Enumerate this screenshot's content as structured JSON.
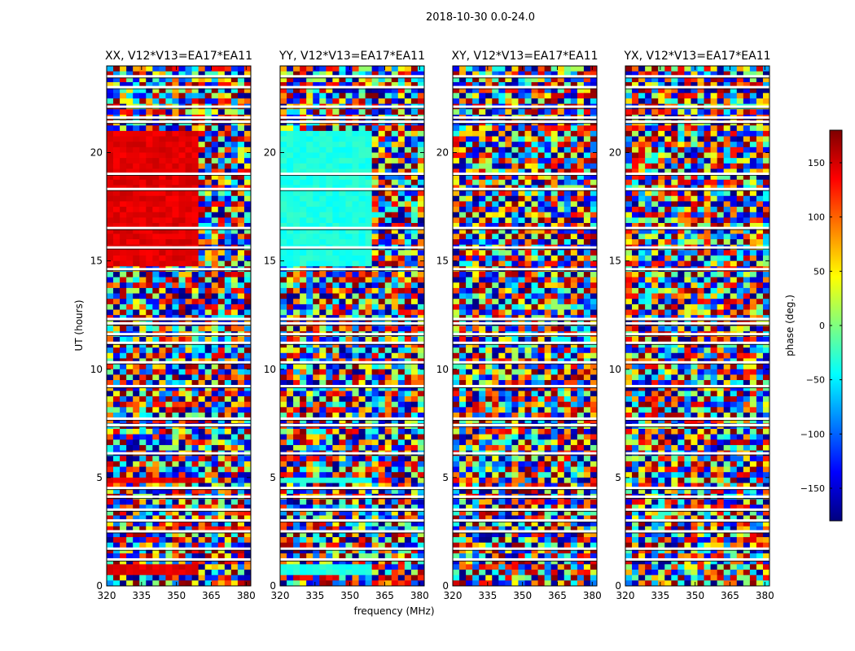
{
  "figure": {
    "suptitle": "2018-10-30 0.0-24.0"
  },
  "chart_data": [
    {
      "type": "heatmap",
      "title": "XX, V12*V13=EA17*EA11",
      "xlabel": "",
      "ylabel": "UT (hours)",
      "xlim": [
        320,
        382
      ],
      "ylim": [
        0,
        24
      ],
      "xticks": [
        320,
        335,
        350,
        365,
        380
      ],
      "yticks": [
        0,
        5,
        10,
        15,
        20
      ],
      "value_range": [
        -180,
        180
      ],
      "dominant_phase_deg": 145,
      "flagged_rows_hours": [
        1.2,
        1.7,
        2.5,
        3.0,
        3.5,
        4.1,
        4.5,
        6.1,
        7.4,
        7.7,
        9.2,
        10.3,
        11.2,
        11.6,
        12.1,
        12.3,
        14.6,
        15.6,
        16.5,
        18.3,
        19.0,
        21.4,
        21.6,
        22.1,
        23.0,
        23.5
      ]
    },
    {
      "type": "heatmap",
      "title": "YY, V12*V13=EA17*EA11",
      "xlabel": "frequency (MHz)",
      "ylabel": "",
      "xlim": [
        320,
        382
      ],
      "ylim": [
        0,
        24
      ],
      "xticks": [
        320,
        335,
        350,
        365,
        380
      ],
      "yticks": [
        0,
        5,
        10,
        15,
        20
      ],
      "value_range": [
        -180,
        180
      ],
      "dominant_phase_deg": -35,
      "flagged_rows_hours": [
        1.2,
        1.7,
        2.5,
        3.0,
        3.5,
        4.1,
        4.5,
        6.1,
        7.4,
        7.7,
        9.2,
        10.3,
        11.2,
        11.6,
        12.1,
        12.3,
        14.6,
        15.6,
        16.5,
        18.3,
        19.0,
        21.4,
        21.6,
        22.1,
        23.0,
        23.5
      ]
    },
    {
      "type": "heatmap",
      "title": "XY, V12*V13=EA17*EA11",
      "xlabel": "",
      "ylabel": "",
      "xlim": [
        320,
        382
      ],
      "ylim": [
        0,
        24
      ],
      "xticks": [
        320,
        335,
        350,
        365,
        380
      ],
      "yticks": [
        0,
        5,
        10,
        15,
        20
      ],
      "value_range": [
        -180,
        180
      ],
      "dominant_phase_deg": null,
      "flagged_rows_hours": [
        1.2,
        1.7,
        2.5,
        3.0,
        3.5,
        4.1,
        4.5,
        6.1,
        7.4,
        7.7,
        9.2,
        10.3,
        11.2,
        11.6,
        12.1,
        12.3,
        14.6,
        15.6,
        16.5,
        18.3,
        19.0,
        21.4,
        21.6,
        22.1,
        23.0,
        23.5
      ]
    },
    {
      "type": "heatmap",
      "title": "YX, V12*V13=EA17*EA11",
      "xlabel": "",
      "ylabel": "",
      "xlim": [
        320,
        382
      ],
      "ylim": [
        0,
        24
      ],
      "xticks": [
        320,
        335,
        350,
        365,
        380
      ],
      "yticks": [
        0,
        5,
        10,
        15,
        20
      ],
      "value_range": [
        -180,
        180
      ],
      "dominant_phase_deg": null,
      "flagged_rows_hours": [
        1.2,
        1.7,
        2.5,
        3.0,
        3.5,
        4.1,
        4.5,
        6.1,
        7.4,
        7.7,
        9.2,
        10.3,
        11.2,
        11.6,
        12.1,
        12.3,
        14.6,
        15.6,
        16.5,
        18.3,
        19.0,
        21.4,
        21.6,
        22.1,
        23.0,
        23.5
      ]
    }
  ],
  "colorbar": {
    "label": "phase (deg.)",
    "min": -180,
    "max": 180,
    "ticks": [
      150,
      100,
      50,
      0,
      -50,
      -100,
      -150
    ],
    "tick_labels": [
      "150",
      "100",
      "50",
      "0",
      "−50",
      "−100",
      "−150"
    ],
    "colormap": "jet",
    "stops": [
      "#00007f",
      "#0000ff",
      "#007fff",
      "#00ffff",
      "#7fff7f",
      "#ffff00",
      "#ff7f00",
      "#ff0000",
      "#7f0000"
    ]
  }
}
